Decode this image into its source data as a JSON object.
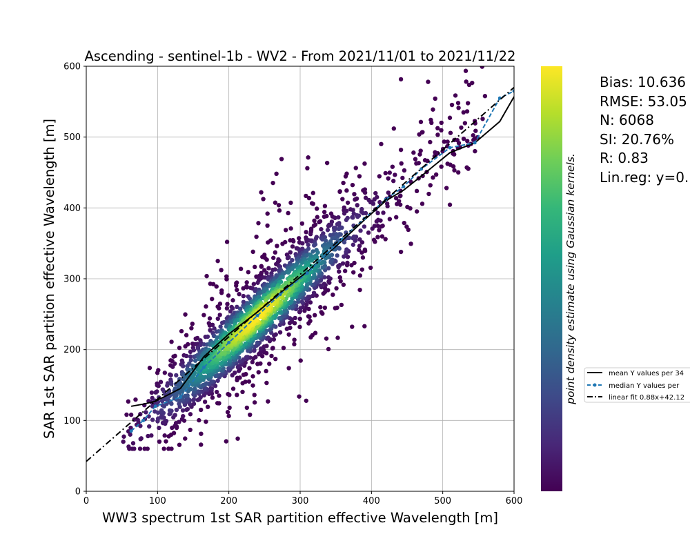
{
  "chart_data": {
    "type": "scatter",
    "title": "Ascending - sentinel-1b - WV2 - From 2021/11/01 to 2021/11/22",
    "xlabel": "WW3 spectrum 1st SAR partition effective Wavelength [m]",
    "ylabel": "SAR 1st SAR partition effective Wavelength [m]",
    "xlim": [
      0,
      600
    ],
    "ylim": [
      0,
      600
    ],
    "xticks": [
      "0",
      "100",
      "200",
      "300",
      "400",
      "500",
      "600"
    ],
    "yticks": [
      "0",
      "100",
      "200",
      "300",
      "400",
      "500",
      "600"
    ],
    "grid": true,
    "colorbar": {
      "label": "point density estimate using Gaussian kernels.",
      "colormap": "viridis",
      "stops": [
        "#440154",
        "#482878",
        "#3e4a89",
        "#31688e",
        "#26828e",
        "#1f9e89",
        "#35b779",
        "#6ece58",
        "#b5de2b",
        "#fde725"
      ]
    },
    "scatter_summary": {
      "n_points": 6068,
      "color": "density",
      "dense_ridge": [
        [
          150,
          140
        ],
        [
          200,
          195
        ],
        [
          250,
          245
        ],
        [
          300,
          300
        ],
        [
          350,
          350
        ],
        [
          400,
          395
        ]
      ]
    },
    "series": [
      {
        "name": "mean Y values per 34",
        "style": "solid",
        "color": "#000000",
        "x": [
          63,
          80,
          97,
          132,
          165,
          200,
          240,
          272,
          310,
          357,
          390,
          420,
          445,
          470,
          510,
          545,
          580,
          600
        ],
        "y": [
          120,
          123,
          127,
          145,
          190,
          222,
          253,
          280,
          310,
          352,
          383,
          410,
          425,
          445,
          478,
          492,
          522,
          557
        ]
      },
      {
        "name": "median Y values per",
        "style": "dashed-marker",
        "color": "#1f77b4",
        "x": [
          63,
          80,
          97,
          132,
          165,
          200,
          240,
          272,
          310,
          357,
          390,
          420,
          445,
          470,
          510,
          545,
          580,
          600
        ],
        "y": [
          85,
          100,
          120,
          133,
          175,
          210,
          248,
          278,
          308,
          355,
          385,
          412,
          430,
          455,
          485,
          492,
          555,
          565
        ]
      },
      {
        "name": "linear fit 0.88x+42.12",
        "style": "dashdot",
        "color": "#000000",
        "slope": 0.88,
        "intercept": 42.12,
        "x": [
          0,
          600
        ],
        "y": [
          42.12,
          570.12
        ]
      }
    ],
    "legend_position": "right",
    "stats": [
      "Bias: 10.636",
      "RMSE: 53.05",
      "N: 6068",
      "SI: 20.76%",
      "R: 0.83",
      "Lin.reg: y=0."
    ]
  }
}
